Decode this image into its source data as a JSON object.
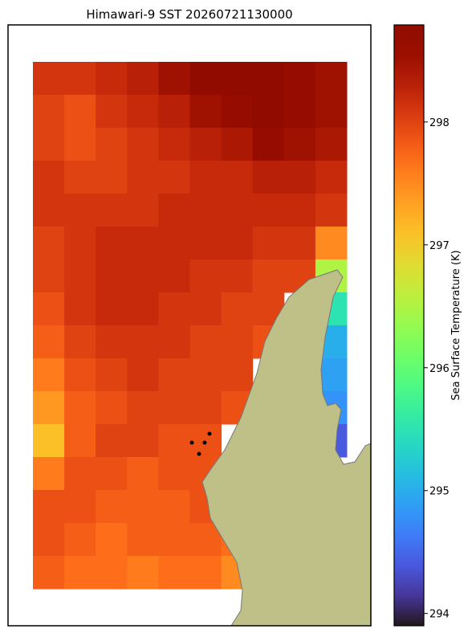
{
  "chart_data": {
    "type": "heatmap",
    "title": "Himawari-9 SST 20260721130000",
    "colorbar_label": "Sea Surface Temperature (K)",
    "colormap": "turbo",
    "clim": [
      293.9,
      298.79
    ],
    "cticks": [
      294,
      295,
      296,
      297,
      298
    ],
    "z": [
      [
        298.1,
        298.1,
        298.2,
        298.3,
        298.5,
        298.7,
        298.7,
        298.7,
        298.6,
        298.5
      ],
      [
        298.0,
        297.9,
        298.1,
        298.2,
        298.3,
        298.5,
        298.6,
        298.7,
        298.6,
        298.5
      ],
      [
        298.0,
        297.9,
        298.0,
        298.1,
        298.2,
        298.3,
        298.4,
        298.6,
        298.5,
        298.4
      ],
      [
        298.1,
        298.0,
        298.0,
        298.1,
        298.1,
        298.2,
        298.2,
        298.3,
        298.3,
        298.2
      ],
      [
        298.1,
        298.1,
        298.1,
        298.1,
        298.2,
        298.2,
        298.2,
        298.2,
        298.2,
        298.1
      ],
      [
        298.0,
        298.1,
        298.2,
        298.2,
        298.2,
        298.2,
        298.2,
        298.1,
        298.1,
        297.5
      ],
      [
        298.0,
        298.1,
        298.2,
        298.2,
        298.2,
        298.1,
        298.1,
        298.0,
        298.0,
        296.5
      ],
      [
        297.9,
        298.1,
        298.2,
        298.2,
        298.1,
        298.1,
        298.0,
        298.0,
        null,
        295.5
      ],
      [
        297.8,
        298.0,
        298.1,
        298.1,
        298.1,
        298.0,
        298.0,
        297.9,
        null,
        295.0
      ],
      [
        297.6,
        297.9,
        298.0,
        298.1,
        298.0,
        298.0,
        298.0,
        null,
        null,
        294.9
      ],
      [
        297.4,
        297.8,
        297.9,
        298.0,
        298.0,
        298.0,
        297.9,
        null,
        null,
        294.8
      ],
      [
        297.1,
        297.8,
        298.0,
        298.0,
        297.9,
        297.9,
        null,
        null,
        null,
        294.4
      ],
      [
        297.6,
        297.9,
        297.9,
        297.8,
        297.9,
        297.9,
        null,
        null,
        null,
        null
      ],
      [
        297.9,
        297.9,
        297.8,
        297.8,
        297.8,
        297.9,
        null,
        null,
        null,
        null
      ],
      [
        297.9,
        297.8,
        297.7,
        297.8,
        297.8,
        297.8,
        297.7,
        null,
        null,
        null
      ],
      [
        297.8,
        297.7,
        297.7,
        297.6,
        297.7,
        297.7,
        297.5,
        null,
        null,
        null
      ]
    ]
  }
}
